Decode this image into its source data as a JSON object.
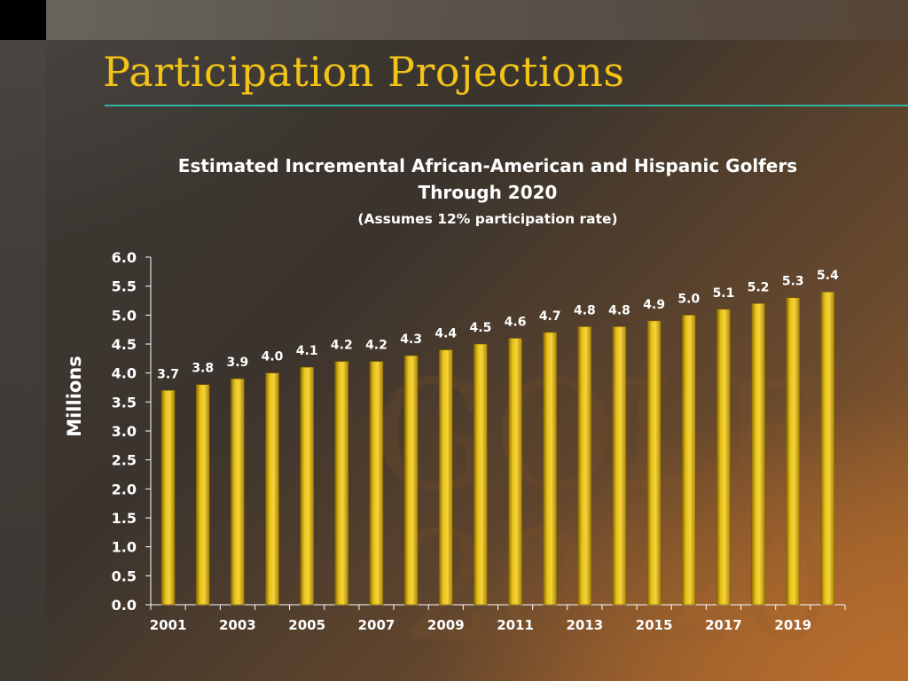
{
  "slide": {
    "title": "Participation Projections",
    "title_color": "#f2c417",
    "rule_color": "#2fb5a2"
  },
  "chart_data": {
    "type": "bar",
    "title_line1": "Estimated Incremental African-American and Hispanic Golfers",
    "title_line2": "Through 2020",
    "subtitle": "(Assumes 12% participation rate)",
    "xlabel": "",
    "ylabel": "Millions",
    "ylim": [
      0,
      6
    ],
    "yticks": [
      "0.0",
      "0.5",
      "1.0",
      "1.5",
      "2.0",
      "2.5",
      "3.0",
      "3.5",
      "4.0",
      "4.5",
      "5.0",
      "5.5",
      "6.0"
    ],
    "categories": [
      2001,
      2002,
      2003,
      2004,
      2005,
      2006,
      2007,
      2008,
      2009,
      2010,
      2011,
      2012,
      2013,
      2014,
      2015,
      2016,
      2017,
      2018,
      2019,
      2020
    ],
    "x_tick_labels": [
      "2001",
      "2003",
      "2005",
      "2007",
      "2009",
      "2011",
      "2013",
      "2015",
      "2017",
      "2019"
    ],
    "values": [
      3.7,
      3.8,
      3.9,
      4.0,
      4.1,
      4.2,
      4.2,
      4.3,
      4.4,
      4.5,
      4.6,
      4.7,
      4.8,
      4.8,
      4.9,
      5.0,
      5.1,
      5.2,
      5.3,
      5.4
    ],
    "data_labels": [
      "3.7",
      "3.8",
      "3.9",
      "4.0",
      "4.1",
      "4.2",
      "4.2",
      "4.3",
      "4.4",
      "4.5",
      "4.6",
      "4.7",
      "4.8",
      "4.8",
      "4.9",
      "5.0",
      "5.1",
      "5.2",
      "5.3",
      "5.4"
    ],
    "bar_color": "#d9b20f",
    "grid": false,
    "legend": "none"
  }
}
